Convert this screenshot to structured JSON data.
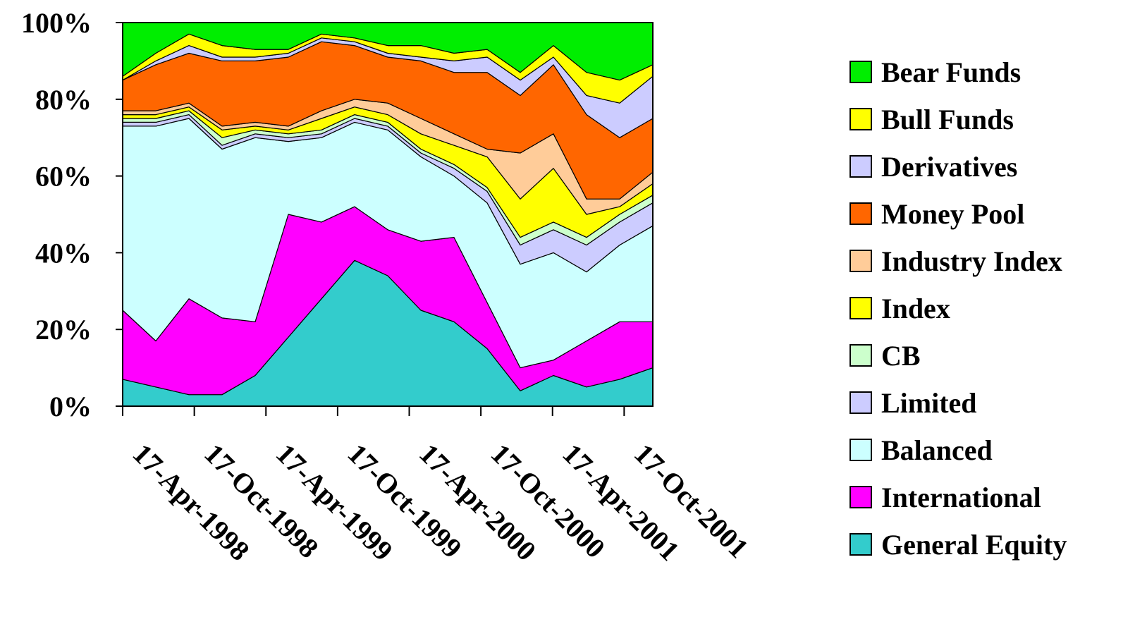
{
  "chart_data": {
    "type": "area",
    "stacked": true,
    "percent": true,
    "xlabel": "",
    "ylabel": "",
    "ylim": [
      0,
      100
    ],
    "yticks": [
      "0%",
      "20%",
      "40%",
      "60%",
      "80%",
      "100%"
    ],
    "xtick_labels": [
      "17-Apr-1998",
      "17-Oct-1998",
      "17-Apr-1999",
      "17-Oct-1999",
      "17-Apr-2000",
      "17-Oct-2000",
      "17-Apr-2001",
      "17-Oct-2001"
    ],
    "x": [
      "1998-01",
      "1998-04",
      "1998-07",
      "1998-10",
      "1999-01",
      "1999-04",
      "1999-07",
      "1999-10",
      "2000-01",
      "2000-04",
      "2000-07",
      "2000-10",
      "2001-01",
      "2001-04",
      "2001-07",
      "2001-10",
      "2001-12"
    ],
    "legend_position": "right",
    "grid": false,
    "series": [
      {
        "name": "General Equity",
        "color": "#33CCCC",
        "values": [
          7,
          5,
          3,
          3,
          8,
          18,
          28,
          38,
          34,
          25,
          22,
          15,
          4,
          8,
          5,
          7,
          10
        ]
      },
      {
        "name": "International",
        "color": "#FF00FF",
        "values": [
          18,
          12,
          25,
          20,
          14,
          32,
          20,
          14,
          12,
          18,
          22,
          12,
          6,
          4,
          12,
          15,
          12
        ]
      },
      {
        "name": "Balanced",
        "color": "#CCFFFF",
        "values": [
          48,
          56,
          47,
          44,
          48,
          19,
          22,
          22,
          26,
          22,
          16,
          26,
          27,
          28,
          18,
          20,
          25
        ]
      },
      {
        "name": "Limited",
        "color": "#CCCCFF",
        "values": [
          1,
          1,
          1,
          1,
          1,
          1,
          1,
          1,
          1,
          1,
          2,
          3,
          5,
          6,
          7,
          6,
          6
        ]
      },
      {
        "name": "CB",
        "color": "#CCFFCC",
        "values": [
          1,
          1,
          1,
          2,
          1,
          1,
          1,
          1,
          1,
          1,
          1,
          1,
          2,
          2,
          2,
          2,
          2
        ]
      },
      {
        "name": "Index",
        "color": "#FFFF00",
        "values": [
          1,
          1,
          1,
          2,
          1,
          1,
          3,
          2,
          2,
          4,
          5,
          8,
          10,
          14,
          6,
          2,
          3
        ]
      },
      {
        "name": "Industry Index",
        "color": "#FFCC99",
        "values": [
          1,
          1,
          1,
          1,
          1,
          1,
          2,
          2,
          3,
          4,
          3,
          2,
          12,
          9,
          4,
          2,
          3
        ]
      },
      {
        "name": "Money Pool",
        "color": "#FF6600",
        "values": [
          8,
          12,
          13,
          17,
          16,
          18,
          18,
          14,
          12,
          15,
          16,
          20,
          15,
          18,
          22,
          16,
          14
        ]
      },
      {
        "name": "Derivatives",
        "color": "#CCCCFF",
        "values": [
          0,
          1,
          2,
          1,
          1,
          1,
          1,
          1,
          1,
          1,
          3,
          4,
          4,
          2,
          5,
          9,
          11
        ]
      },
      {
        "name": "Bull Funds",
        "color": "#FFFF00",
        "values": [
          1,
          2,
          3,
          3,
          2,
          1,
          1,
          1,
          2,
          3,
          2,
          2,
          2,
          3,
          6,
          6,
          3
        ]
      },
      {
        "name": "Bear Funds",
        "color": "#00EE00",
        "values": [
          14,
          8,
          3,
          6,
          7,
          7,
          3,
          4,
          6,
          6,
          8,
          7,
          13,
          6,
          13,
          15,
          11
        ]
      }
    ]
  }
}
